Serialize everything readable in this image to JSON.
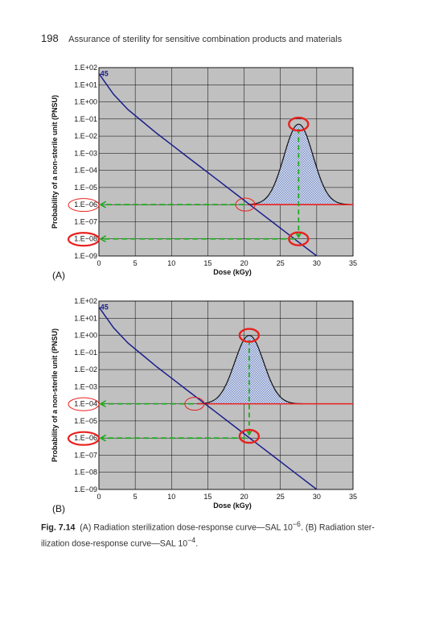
{
  "page_header": {
    "page_number": "198",
    "running_title": "Assurance of sterility for sensitive combination products and materials"
  },
  "caption": {
    "label": "Fig. 7.14",
    "part_a": "(A) Radiation sterilization dose-response curve—SAL 10",
    "exp_a": "−6",
    "part_b": ". (B) Radiation ster-ilization dose-response curve—SAL 10",
    "exp_b": "−4",
    "end": "."
  },
  "colors": {
    "plot_bg": "#c0c0c0",
    "grid": "#000000",
    "curve": "#1b1f8a",
    "sal_line": "#e8211e",
    "arrow": "#22aa22",
    "bell_fill": "#7f93c7",
    "circle": "#e8211e"
  },
  "chart_data": [
    {
      "panel": "(A)",
      "type": "line",
      "xlabel": "Dose (kGy)",
      "ylabel": "Probability of a non-sterile unit (PNSU)",
      "y_scale": "log",
      "xlim": [
        0,
        35
      ],
      "ylim": [
        -9,
        2
      ],
      "x_ticks": [
        "0",
        "5",
        "10",
        "15",
        "20",
        "25",
        "30",
        "35"
      ],
      "y_ticks": [
        "1.E+02",
        "1.E+01",
        "1.E+00",
        "1.E−01",
        "1.E−02",
        "1.E−03",
        "1.E−04",
        "1.E−05",
        "1.E−06",
        "1.E−07",
        "1.E−08",
        "1.E−09"
      ],
      "start_label": "45",
      "grid": true,
      "curve": {
        "x": [
          0,
          2,
          4,
          6,
          8,
          10,
          12,
          14,
          16,
          18,
          20,
          22,
          24,
          26,
          28,
          30,
          32
        ],
        "y_exp": [
          1.65,
          0.45,
          -0.45,
          -1.15,
          -1.85,
          -2.5,
          -3.15,
          -3.8,
          -4.45,
          -5.1,
          -5.75,
          -6.4,
          -7.05,
          -7.7,
          -8.35,
          -9.0,
          -9.5
        ]
      },
      "sal_exp": -6,
      "sal_x_range": [
        20.5,
        35
      ],
      "bell": {
        "center": 27.5,
        "sigma": 2.0,
        "peak_exp": -1.3,
        "x_range": [
          20.5,
          34.5
        ]
      },
      "vertical_arrow": {
        "x": 27.5,
        "from_exp": -1.3,
        "to_exp": -8.0
      },
      "horizontal_arrows": [
        {
          "y_exp": -6,
          "from_x": 20.5
        },
        {
          "y_exp": -8,
          "from_x": 27.5
        }
      ],
      "circled_ticks": [
        "1.E−06",
        "1.E−08"
      ]
    },
    {
      "panel": "(B)",
      "type": "line",
      "xlabel": "Dose (kGy)",
      "ylabel": "Probability of a non-sterile unit (PNSU)",
      "y_scale": "log",
      "xlim": [
        0,
        35
      ],
      "ylim": [
        -9,
        2
      ],
      "x_ticks": [
        "0",
        "5",
        "10",
        "15",
        "20",
        "25",
        "30",
        "35"
      ],
      "y_ticks": [
        "1.E+02",
        "1.E+01",
        "1.E+00",
        "1.E−01",
        "1.E−02",
        "1.E−03",
        "1.E−04",
        "1.E−05",
        "1.E−06",
        "1.E−07",
        "1.E−08",
        "1.E−09"
      ],
      "start_label": "45",
      "grid": true,
      "curve": {
        "x": [
          0,
          2,
          4,
          6,
          8,
          10,
          12,
          14,
          16,
          18,
          20,
          22,
          24,
          26,
          28,
          30,
          32
        ],
        "y_exp": [
          1.65,
          0.45,
          -0.45,
          -1.15,
          -1.85,
          -2.5,
          -3.15,
          -3.8,
          -4.45,
          -5.1,
          -5.75,
          -6.4,
          -7.05,
          -7.7,
          -8.35,
          -9.0,
          -9.5
        ]
      },
      "sal_exp": -4,
      "sal_x_range": [
        13.5,
        35
      ],
      "bell": {
        "center": 20.7,
        "sigma": 2.0,
        "peak_exp": 0.0,
        "x_range": [
          13.5,
          28
        ]
      },
      "vertical_arrow": {
        "x": 20.7,
        "from_exp": 0.0,
        "to_exp": -5.9
      },
      "horizontal_arrows": [
        {
          "y_exp": -4,
          "from_x": 13.5
        },
        {
          "y_exp": -6,
          "from_x": 20.7
        }
      ],
      "circled_ticks": [
        "1.E−04",
        "1.E−06"
      ]
    }
  ]
}
